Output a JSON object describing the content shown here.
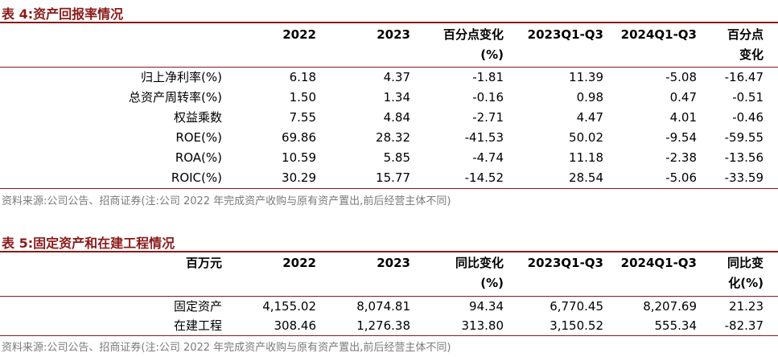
{
  "table4": {
    "title": "表 4:资产回报率情况",
    "headers": [
      "",
      "2022",
      "2023",
      "百分点变化",
      "2023Q1-Q3",
      "2024Q1-Q3",
      "百分点"
    ],
    "headers_line2": [
      "",
      "",
      "",
      "(%)",
      "",
      "",
      "变化"
    ],
    "rows": [
      {
        "label": "归上净利率(%)",
        "values": [
          "6.18",
          "4.37",
          "-1.81",
          "11.39",
          "-5.08",
          "-16.47"
        ]
      },
      {
        "label": "总资产周转率(%)",
        "values": [
          "1.50",
          "1.34",
          "-0.16",
          "0.98",
          "0.47",
          "-0.51"
        ]
      },
      {
        "label": "权益乘数",
        "values": [
          "7.55",
          "4.84",
          "-2.71",
          "4.47",
          "4.01",
          "-0.46"
        ]
      },
      {
        "label": "ROE(%)",
        "values": [
          "69.86",
          "28.32",
          "-41.53",
          "50.02",
          "-9.54",
          "-59.55"
        ]
      },
      {
        "label": "ROA(%)",
        "values": [
          "10.59",
          "5.85",
          "-4.74",
          "11.18",
          "-2.38",
          "-13.56"
        ]
      },
      {
        "label": "ROIC(%)",
        "values": [
          "30.29",
          "15.77",
          "-14.52",
          "28.54",
          "-5.06",
          "-33.59"
        ]
      }
    ],
    "source": "资料来源:公司公告、招商证券(注:公司 2022 年完成资产收购与原有资产置出,前后经营主体不同)"
  },
  "table5": {
    "title": "表 5:固定资产和在建工程情况",
    "headers": [
      "百万元",
      "2022",
      "2023",
      "同比变化",
      "2023Q1-Q3",
      "2024Q1-Q3",
      "同比变"
    ],
    "headers_line2": [
      "",
      "",
      "",
      "(%)",
      "",
      "",
      "化(%)"
    ],
    "rows": [
      {
        "label": "固定资产",
        "values": [
          "4,155.02",
          "8,074.81",
          "94.34",
          "6,770.45",
          "8,207.69",
          "21.23"
        ]
      },
      {
        "label": "在建工程",
        "values": [
          "308.46",
          "1,276.38",
          "313.80",
          "3,150.52",
          "555.34",
          "-82.37"
        ]
      }
    ],
    "source": "资料来源:公司公告、招商证券(注:公司 2022 年完成资产收购与原有资产置出,前后经营主体不同)"
  }
}
